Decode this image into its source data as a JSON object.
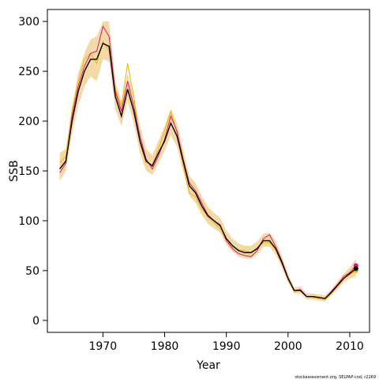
{
  "chart_data": {
    "type": "line",
    "xlabel": "Year",
    "ylabel": "SSB",
    "caption": "stockassessment.org, SELPAP-cod, r2269",
    "x": [
      1963,
      1964,
      1965,
      1966,
      1967,
      1968,
      1969,
      1970,
      1971,
      1972,
      1973,
      1974,
      1975,
      1976,
      1977,
      1978,
      1979,
      1980,
      1981,
      1982,
      1983,
      1984,
      1985,
      1986,
      1987,
      1988,
      1989,
      1990,
      1991,
      1992,
      1993,
      1994,
      1995,
      1996,
      1997,
      1998,
      1999,
      2000,
      2001,
      2002,
      2003,
      2004,
      2005,
      2006,
      2007,
      2008,
      2009,
      2010,
      2011
    ],
    "band": {
      "color": "#f3d9a6",
      "lower": [
        140,
        150,
        188,
        215,
        235,
        245,
        240,
        262,
        260,
        212,
        195,
        220,
        198,
        168,
        150,
        146,
        158,
        170,
        186,
        174,
        150,
        125,
        118,
        106,
        97,
        92,
        88,
        76,
        69,
        64,
        62,
        62,
        66,
        74,
        74,
        66,
        53,
        38,
        27,
        27,
        21,
        21,
        20,
        19,
        25,
        31,
        38,
        42,
        44
      ],
      "upper": [
        168,
        172,
        215,
        248,
        268,
        282,
        285,
        300,
        300,
        240,
        220,
        248,
        225,
        195,
        172,
        166,
        180,
        195,
        212,
        198,
        172,
        145,
        138,
        125,
        114,
        108,
        103,
        90,
        82,
        77,
        75,
        75,
        79,
        87,
        88,
        80,
        64,
        47,
        33,
        34,
        27,
        27,
        26,
        25,
        31,
        39,
        47,
        53,
        62
      ]
    },
    "series": [
      {
        "color": "#e8b800",
        "values": [
          158,
          165,
          210,
          240,
          262,
          268,
          258,
          280,
          270,
          232,
          215,
          258,
          225,
          178,
          158,
          156,
          172,
          190,
          210,
          188,
          155,
          128,
          124,
          112,
          104,
          98,
          92,
          80,
          74,
          71,
          70,
          68,
          73,
          78,
          78,
          71,
          57,
          41,
          29,
          31,
          24,
          23,
          22,
          21,
          27,
          34,
          42,
          46,
          50
        ]
      },
      {
        "color": "#e0147a",
        "values": [
          148,
          158,
          205,
          235,
          255,
          268,
          270,
          295,
          285,
          230,
          210,
          240,
          215,
          185,
          162,
          152,
          165,
          182,
          205,
          190,
          162,
          138,
          130,
          118,
          106,
          100,
          96,
          80,
          72,
          67,
          65,
          64,
          70,
          82,
          86,
          74,
          60,
          43,
          30,
          31,
          24,
          24,
          23,
          22,
          29,
          36,
          44,
          48,
          55
        ]
      },
      {
        "color": "#000000",
        "values": [
          152,
          160,
          200,
          230,
          250,
          262,
          262,
          278,
          275,
          225,
          205,
          232,
          210,
          180,
          160,
          155,
          168,
          180,
          198,
          185,
          160,
          135,
          128,
          115,
          105,
          100,
          95,
          82,
          75,
          70,
          68,
          68,
          72,
          80,
          80,
          72,
          58,
          42,
          30,
          30,
          24,
          24,
          23,
          22,
          28,
          35,
          42,
          47,
          52
        ]
      }
    ],
    "xlim": [
      1961,
      2013.2
    ],
    "ylim": [
      -12,
      312
    ],
    "xticks": [
      1970,
      1980,
      1990,
      2000,
      2010
    ],
    "yticks": [
      0,
      50,
      100,
      150,
      200,
      250,
      300
    ]
  }
}
